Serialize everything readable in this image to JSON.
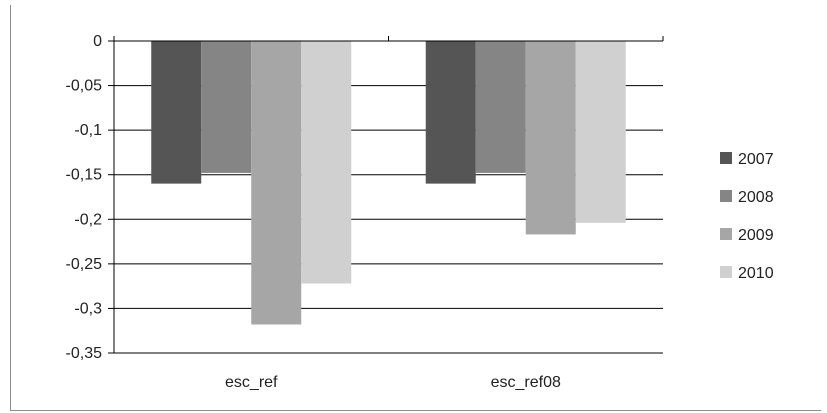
{
  "chart_data": {
    "type": "bar",
    "title": "",
    "xlabel": "",
    "ylabel": "",
    "categories": [
      "esc_ref",
      "esc_ref08"
    ],
    "series": [
      {
        "name": "2007",
        "values": [
          -0.16,
          -0.16
        ],
        "color": "#555555"
      },
      {
        "name": "2008",
        "values": [
          -0.148,
          -0.148
        ],
        "color": "#858585"
      },
      {
        "name": "2009",
        "values": [
          -0.318,
          -0.217
        ],
        "color": "#a6a6a6"
      },
      {
        "name": "2010",
        "values": [
          -0.272,
          -0.204
        ],
        "color": "#d0d0d0"
      }
    ],
    "ylim": [
      -0.35,
      0
    ],
    "yticks": [
      "0",
      "-0,05",
      "-0,1",
      "-0,15",
      "-0,2",
      "-0,25",
      "-0,3",
      "-0,35"
    ],
    "grid": true,
    "legend": "right"
  }
}
